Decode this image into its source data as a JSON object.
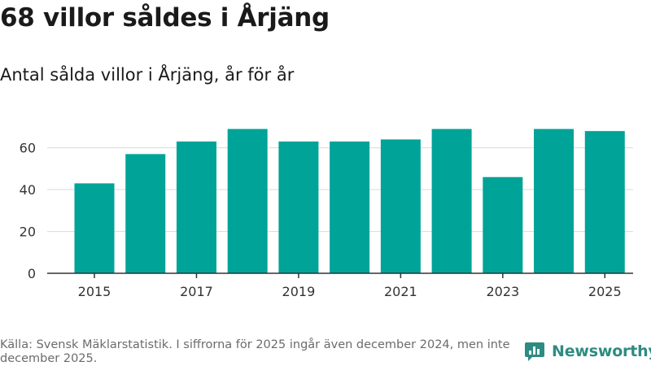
{
  "header": {
    "title": "68 villor såldes i Årjäng",
    "subtitle": "Antal sålda villor i Årjäng, år för år"
  },
  "footer": {
    "source": "Källa: Svensk Mäklarstatistik. I siffrorna för 2025 ingår även december 2024, men inte december 2025.",
    "brand": "Newsworthy",
    "brand_icon": "newsworthy-logo-icon",
    "brand_color": "#2e8b82"
  },
  "chart_data": {
    "type": "bar",
    "categories": [
      "2015",
      "2016",
      "2017",
      "2018",
      "2019",
      "2020",
      "2021",
      "2022",
      "2023",
      "2024",
      "2025"
    ],
    "values": [
      43,
      57,
      63,
      69,
      63,
      63,
      64,
      69,
      46,
      69,
      68
    ],
    "x_tick_labels": [
      "2015",
      "2017",
      "2019",
      "2021",
      "2023",
      "2025"
    ],
    "y_ticks": [
      0,
      20,
      40,
      60
    ],
    "ylim": [
      0,
      70
    ],
    "grid": true,
    "bar_color": "#00a398"
  }
}
